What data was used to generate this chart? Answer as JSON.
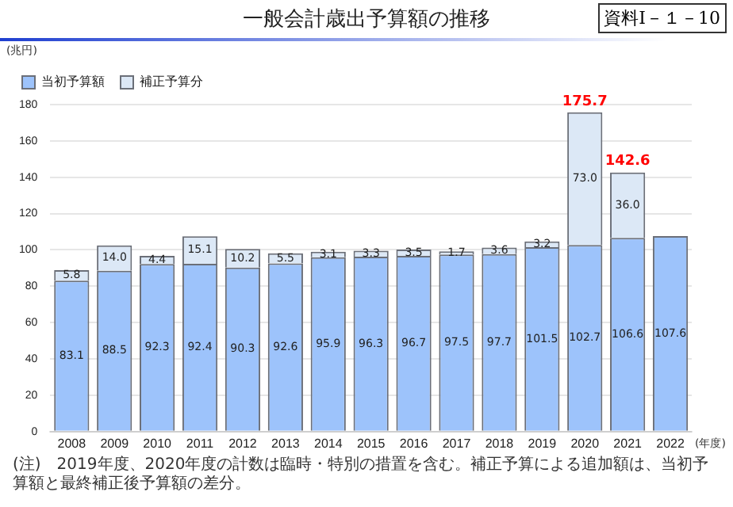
{
  "chart_data": {
    "type": "bar",
    "title": "一般会計歳出予算額の推移",
    "ylabel": "(兆円)",
    "xlabel": "(年度)",
    "categories": [
      "2008",
      "2009",
      "2010",
      "2011",
      "2012",
      "2013",
      "2014",
      "2015",
      "2016",
      "2017",
      "2018",
      "2019",
      "2020",
      "2021",
      "2022"
    ],
    "series": [
      {
        "name": "当初予算額",
        "color": "#9dc3fb",
        "values": [
          83.1,
          88.5,
          92.3,
          92.4,
          90.3,
          92.6,
          95.9,
          96.3,
          96.7,
          97.5,
          97.7,
          101.5,
          102.7,
          106.6,
          107.6
        ],
        "value_labels": [
          "83.1",
          "88.5",
          "92.3",
          "92.4",
          "90.3",
          "92.6",
          "95.9",
          "96.3",
          "96.7",
          "97.5",
          "97.7",
          "101.5",
          "102.7",
          "106.6",
          "107.6"
        ]
      },
      {
        "name": "補正予算分",
        "color": "#dce8f6",
        "values": [
          5.8,
          14.0,
          4.4,
          15.1,
          10.2,
          5.5,
          3.1,
          3.3,
          3.5,
          1.7,
          3.6,
          3.2,
          73.0,
          36.0,
          null
        ],
        "value_labels": [
          "5.8",
          "14.0",
          "4.4",
          "15.1",
          "10.2",
          "5.5",
          "3.1",
          "3.3",
          "3.5",
          "1.7",
          "3.6",
          "3.2",
          "73.0",
          "36.0",
          null
        ]
      }
    ],
    "stacked": true,
    "totals": [
      null,
      null,
      null,
      null,
      null,
      null,
      null,
      null,
      null,
      null,
      null,
      null,
      "175.7",
      "142.6",
      null
    ],
    "ylim": [
      0,
      180
    ],
    "yticks": [
      0,
      20,
      40,
      60,
      80,
      100,
      120,
      140,
      160,
      180
    ],
    "grid": "y",
    "legend": "top left",
    "annotations": [
      "資料Ⅰ－１－10",
      "(注)　2019年度、2020年度の計数は臨時・特別の措置を含む。補正予算による追加額は、当初予算額と最終補正後予算額の差分。"
    ]
  }
}
